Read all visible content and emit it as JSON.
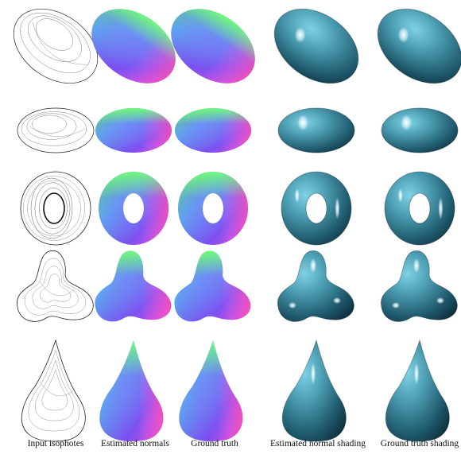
{
  "figure": {
    "columns": [
      "Input isophotes",
      "Estimated normals",
      "Ground truth",
      "Estimated normal shading",
      "Ground truth shading"
    ],
    "rows": [
      "ellipsoid-tilted",
      "ellipsoid-flat",
      "torus",
      "blob",
      "teardrop"
    ]
  },
  "colors": {
    "shading_base": "#4a9bb0",
    "shading_dark": "#0c2c37",
    "shading_highlight": "#e8fbff",
    "outline": "#1a1a1a"
  }
}
